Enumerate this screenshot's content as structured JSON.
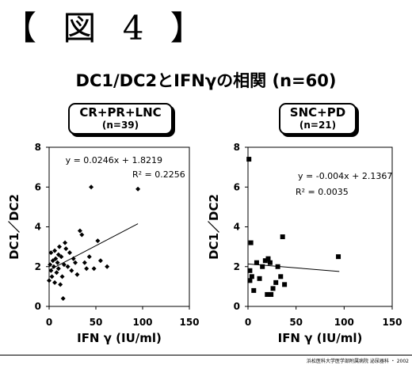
{
  "figure_label": "【 図 4 】",
  "main_title": "DC1/DC2とIFNγの相関 (n=60)",
  "credit": "浜松医科大学医学部附属病院 泌尿器科 ・ 2002",
  "chart_data": [
    {
      "type": "scatter",
      "group_name": "CR+PR+LNC",
      "group_n": "(n=39)",
      "xlabel": "IFN γ (IU/ml)",
      "ylabel": "DC1／DC2",
      "xlim": [
        0,
        150
      ],
      "ylim": [
        0,
        8
      ],
      "xticks": [
        "0",
        "50",
        "100",
        "150"
      ],
      "yticks": [
        "0",
        "2",
        "4",
        "6",
        "8"
      ],
      "marker": "diamond",
      "grid": false,
      "equation": "y = 0.0246x + 1.8219",
      "r2_label": "R² = 0.2256",
      "trendline": {
        "slope": 0.0246,
        "intercept": 1.8219,
        "x_range": [
          0,
          95
        ]
      },
      "points": [
        [
          0,
          1.3
        ],
        [
          1,
          2.1
        ],
        [
          2,
          1.8
        ],
        [
          2,
          2.7
        ],
        [
          3,
          1.5
        ],
        [
          4,
          2.3
        ],
        [
          5,
          2.0
        ],
        [
          6,
          1.2
        ],
        [
          6,
          2.8
        ],
        [
          7,
          2.4
        ],
        [
          8,
          1.7
        ],
        [
          9,
          2.2
        ],
        [
          10,
          1.9
        ],
        [
          10,
          2.6
        ],
        [
          11,
          3.0
        ],
        [
          12,
          1.1
        ],
        [
          13,
          2.5
        ],
        [
          14,
          1.5
        ],
        [
          15,
          0.4
        ],
        [
          16,
          2.1
        ],
        [
          17,
          3.2
        ],
        [
          18,
          2.9
        ],
        [
          20,
          2.0
        ],
        [
          22,
          2.7
        ],
        [
          24,
          1.8
        ],
        [
          26,
          2.4
        ],
        [
          28,
          2.2
        ],
        [
          30,
          1.6
        ],
        [
          33,
          3.8
        ],
        [
          35,
          3.6
        ],
        [
          38,
          2.2
        ],
        [
          40,
          1.9
        ],
        [
          43,
          2.5
        ],
        [
          45,
          6.0
        ],
        [
          48,
          1.9
        ],
        [
          52,
          3.3
        ],
        [
          55,
          2.3
        ],
        [
          62,
          2.0
        ],
        [
          95,
          5.9
        ]
      ]
    },
    {
      "type": "scatter",
      "group_name": "SNC+PD",
      "group_n": "(n=21)",
      "xlabel": "IFN γ (IU/ml)",
      "ylabel": "DC1／DC2",
      "xlim": [
        0,
        150
      ],
      "ylim": [
        0,
        8
      ],
      "xticks": [
        "0",
        "50",
        "100",
        "150"
      ],
      "yticks": [
        "0",
        "2",
        "4",
        "6",
        "8"
      ],
      "marker": "square",
      "grid": false,
      "equation": "y = -0.004x + 2.1367",
      "r2_label": "R² = 0.0035",
      "trendline": {
        "slope": -0.004,
        "intercept": 2.1367,
        "x_range": [
          0,
          95
        ]
      },
      "points": [
        [
          1,
          7.4
        ],
        [
          2,
          1.8
        ],
        [
          2,
          1.3
        ],
        [
          3,
          3.2
        ],
        [
          4,
          1.5
        ],
        [
          6,
          0.8
        ],
        [
          9,
          2.2
        ],
        [
          12,
          1.4
        ],
        [
          15,
          2.0
        ],
        [
          18,
          2.3
        ],
        [
          20,
          0.6
        ],
        [
          21,
          2.4
        ],
        [
          23,
          2.2
        ],
        [
          24,
          0.6
        ],
        [
          26,
          0.9
        ],
        [
          29,
          1.2
        ],
        [
          31,
          2.0
        ],
        [
          34,
          1.5
        ],
        [
          36,
          3.5
        ],
        [
          38,
          1.1
        ],
        [
          94,
          2.5
        ]
      ]
    }
  ]
}
